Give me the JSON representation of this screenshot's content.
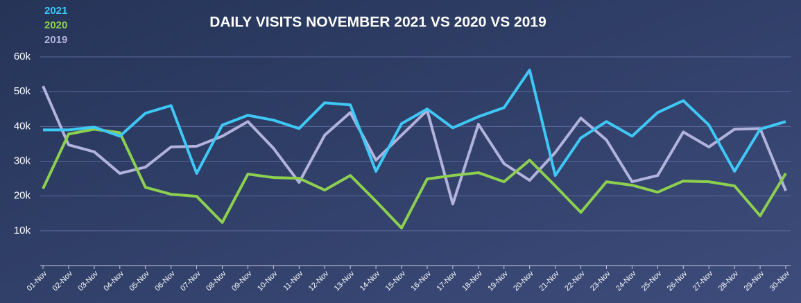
{
  "chart_data": {
    "type": "line",
    "title": "DAILY VISITS NOVEMBER 2021 VS 2020 VS 2019",
    "categories": [
      "01-Nov",
      "02-Nov",
      "03-Nov",
      "04-Nov",
      "05-Nov",
      "06-Nov",
      "07-Nov",
      "08-Nov",
      "09-Nov",
      "10-Nov",
      "11-Nov",
      "12-Nov",
      "13-Nov",
      "14-Nov",
      "15-Nov",
      "16-Nov",
      "17-Nov",
      "18-Nov",
      "19-Nov",
      "20-Nov",
      "21-Nov",
      "22-Nov",
      "23-Nov",
      "24-Nov",
      "25-Nov",
      "26-Nov",
      "27-Nov",
      "28-Nov",
      "29-Nov",
      "30-Nov"
    ],
    "series": [
      {
        "name": "2021",
        "color": "#3fc8f6",
        "values": [
          39000,
          39000,
          39800,
          37200,
          43800,
          46000,
          26500,
          40400,
          43200,
          41800,
          39400,
          46800,
          46200,
          27100,
          40800,
          45000,
          39600,
          42800,
          45400,
          56200,
          25900,
          36700,
          41400,
          37200,
          44000,
          47400,
          40400,
          27100,
          39200,
          41400
        ]
      },
      {
        "name": "2020",
        "color": "#8dd04f",
        "values": [
          22100,
          37800,
          39200,
          38200,
          22500,
          20500,
          19900,
          12400,
          26300,
          25300,
          25100,
          21700,
          25900,
          18500,
          10800,
          24900,
          25900,
          26700,
          24100,
          30300,
          22900,
          15300,
          24100,
          23100,
          21100,
          24300,
          24100,
          22900,
          14300,
          26500
        ]
      },
      {
        "name": "2019",
        "color": "#b2b3dc",
        "values": [
          51600,
          34700,
          32700,
          26500,
          28300,
          34100,
          34300,
          37200,
          41400,
          33700,
          23900,
          37500,
          44000,
          30300,
          37500,
          44600,
          17700,
          40600,
          29300,
          24500,
          32500,
          42400,
          36100,
          24100,
          25900,
          38400,
          34100,
          39200,
          39400,
          21500
        ]
      }
    ],
    "ylim": [
      0,
      60000
    ],
    "yticks": [
      {
        "value": 10000,
        "label": "10k"
      },
      {
        "value": 20000,
        "label": "20k"
      },
      {
        "value": 30000,
        "label": "30k"
      },
      {
        "value": 40000,
        "label": "40k"
      },
      {
        "value": 50000,
        "label": "50k"
      },
      {
        "value": 60000,
        "label": "60k"
      }
    ],
    "grid": true
  }
}
